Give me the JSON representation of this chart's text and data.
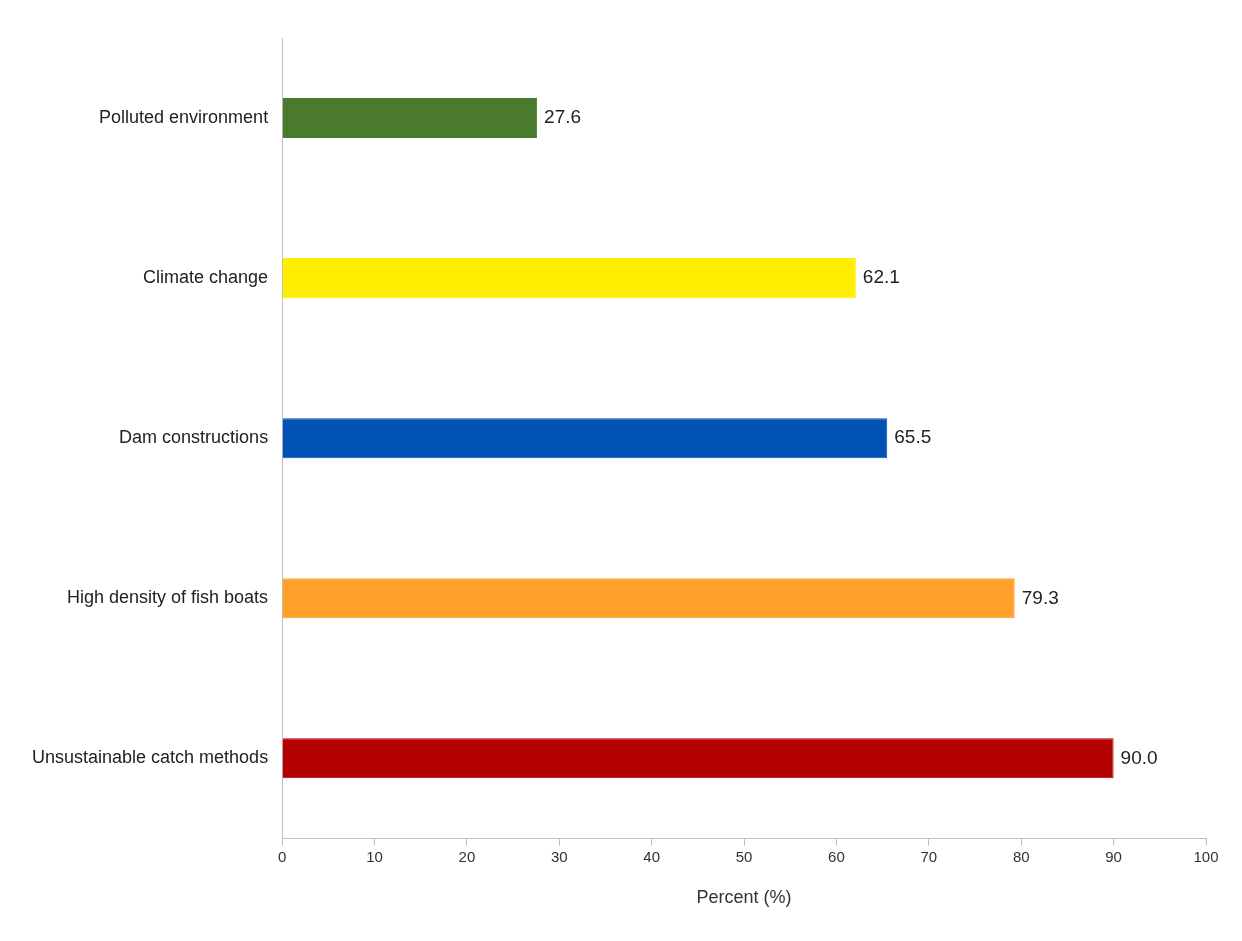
{
  "chart_data": {
    "type": "bar",
    "orientation": "horizontal",
    "xlabel": "Percent (%)",
    "categories": [
      "Polluted environment",
      "Climate change",
      "Dam constructions",
      "High density of fish boats",
      "Unsustainable catch methods"
    ],
    "values": [
      27.6,
      62.1,
      65.5,
      79.3,
      90.0
    ],
    "value_labels": [
      "27.6",
      "62.1",
      "65.5",
      "79.3",
      "90.0"
    ],
    "colors": [
      "#4a7a2e",
      "#ffee00",
      "#0052b4",
      "#ffa02a",
      "#b30000"
    ],
    "xlim": [
      0,
      100
    ],
    "xticks": [
      0,
      10,
      20,
      30,
      40,
      50,
      60,
      70,
      80,
      90,
      100
    ],
    "grid": false,
    "legend": false
  }
}
